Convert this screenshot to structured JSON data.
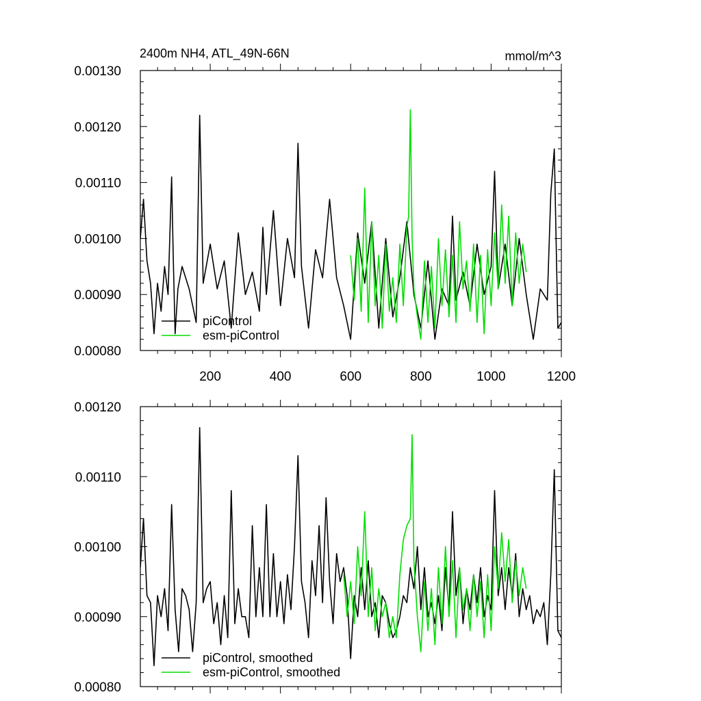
{
  "figure": {
    "title_left": "2400m NH4, ATL_49N-66N",
    "title_right": "mmol/m^3"
  },
  "colors": {
    "piControl": "#000000",
    "esm_piControl": "#00dd00",
    "axes": "#000000",
    "background": "#ffffff"
  },
  "chart_data": [
    {
      "type": "line",
      "title": "2400m NH4, ATL_49N-66N",
      "units": "mmol/m^3",
      "xlabel": "",
      "ylabel": "",
      "xlim": [
        1,
        1200
      ],
      "ylim": [
        0.0008,
        0.0013
      ],
      "xticks": [
        200,
        400,
        600,
        800,
        1000,
        1200
      ],
      "xtick_labels": [
        "200",
        "400",
        "600",
        "800",
        "1000",
        "1200"
      ],
      "yticks": [
        0.0008,
        0.0009,
        0.001,
        0.0011,
        0.0012,
        0.0013
      ],
      "ytick_labels": [
        "0.00080",
        "0.00090",
        "0.00100",
        "0.00110",
        "0.00120",
        "0.00130"
      ],
      "legend": {
        "placement": "bottom-left",
        "entries": [
          "piControl",
          "esm-piControl"
        ]
      },
      "series": [
        {
          "name": "piControl",
          "x": [
            1,
            10,
            20,
            30,
            40,
            50,
            60,
            70,
            80,
            90,
            95,
            100,
            108,
            120,
            140,
            160,
            170,
            180,
            200,
            220,
            240,
            260,
            280,
            300,
            320,
            340,
            350,
            360,
            380,
            400,
            420,
            440,
            450,
            460,
            480,
            500,
            520,
            540,
            560,
            580,
            600,
            620,
            640,
            660,
            680,
            700,
            720,
            740,
            760,
            780,
            800,
            820,
            840,
            860,
            880,
            890,
            900,
            920,
            940,
            960,
            980,
            1000,
            1010,
            1020,
            1040,
            1060,
            1080,
            1100,
            1120,
            1140,
            1160,
            1170,
            1180,
            1190,
            1200
          ],
          "values": [
            0.001,
            0.00107,
            0.00096,
            0.00092,
            0.00083,
            0.00092,
            0.00087,
            0.00095,
            0.0009,
            0.00111,
            0.00096,
            0.00083,
            0.00091,
            0.00095,
            0.00091,
            0.00085,
            0.00122,
            0.00092,
            0.00099,
            0.00091,
            0.00096,
            0.00084,
            0.00101,
            0.0009,
            0.00094,
            0.00087,
            0.00102,
            0.0009,
            0.00105,
            0.00088,
            0.001,
            0.00093,
            0.00117,
            0.00095,
            0.00084,
            0.00098,
            0.00093,
            0.00107,
            0.00093,
            0.00088,
            0.00082,
            0.00101,
            0.00092,
            0.00103,
            0.00084,
            0.001,
            0.00086,
            0.00093,
            0.00103,
            0.0009,
            0.00084,
            0.00096,
            0.00082,
            0.00091,
            0.00088,
            0.00104,
            0.00089,
            0.00094,
            0.00088,
            0.00099,
            0.0009,
            0.00095,
            0.00112,
            0.00091,
            0.00099,
            0.00088,
            0.001,
            0.0009,
            0.00082,
            0.00091,
            0.00089,
            0.00108,
            0.00116,
            0.00084,
            0.00085
          ]
        },
        {
          "name": "esm-piControl",
          "x": [
            600,
            610,
            620,
            630,
            640,
            650,
            660,
            670,
            680,
            690,
            700,
            710,
            720,
            730,
            740,
            750,
            760,
            765,
            770,
            775,
            780,
            790,
            800,
            810,
            820,
            830,
            840,
            850,
            860,
            870,
            880,
            890,
            900,
            910,
            920,
            930,
            940,
            950,
            960,
            970,
            980,
            990,
            1000,
            1010,
            1020,
            1030,
            1040,
            1050,
            1060,
            1070,
            1080,
            1090,
            1100
          ],
          "values": [
            0.00097,
            0.00089,
            0.001,
            0.00087,
            0.00109,
            0.00085,
            0.00103,
            0.00088,
            0.00097,
            0.00084,
            0.00099,
            0.00087,
            0.00093,
            0.00085,
            0.00099,
            0.00088,
            0.00102,
            0.00104,
            0.00123,
            0.001,
            0.00091,
            0.00086,
            0.00082,
            0.00096,
            0.00085,
            0.00095,
            0.00084,
            0.001,
            0.00088,
            0.00098,
            0.00086,
            0.00097,
            0.00085,
            0.00103,
            0.00091,
            0.00096,
            0.00087,
            0.00099,
            0.00085,
            0.00097,
            0.00083,
            0.00098,
            0.00088,
            0.00101,
            0.00091,
            0.00106,
            0.00092,
            0.00104,
            0.00088,
            0.00101,
            0.00092,
            0.00099,
            0.00094
          ]
        }
      ]
    },
    {
      "type": "line",
      "title": "",
      "xlabel": "",
      "ylabel": "",
      "xlim": [
        1,
        1200
      ],
      "ylim": [
        0.0008,
        0.0012
      ],
      "xticks": [
        200,
        400,
        600,
        800,
        1000,
        1200
      ],
      "xtick_labels": [],
      "yticks": [
        0.0008,
        0.0009,
        0.001,
        0.0011,
        0.0012
      ],
      "ytick_labels": [
        "0.00080",
        "0.00090",
        "0.00100",
        "0.00110",
        "0.00120"
      ],
      "legend": {
        "placement": "bottom-left",
        "entries": [
          "piControl, smoothed",
          "esm-piControl, smoothed"
        ]
      },
      "series": [
        {
          "name": "piControl, smoothed",
          "x": [
            1,
            10,
            20,
            30,
            40,
            50,
            60,
            70,
            80,
            90,
            100,
            110,
            120,
            130,
            140,
            150,
            160,
            170,
            180,
            190,
            200,
            210,
            220,
            230,
            240,
            250,
            260,
            270,
            280,
            290,
            300,
            310,
            320,
            330,
            340,
            350,
            360,
            370,
            380,
            390,
            400,
            410,
            420,
            430,
            440,
            450,
            460,
            470,
            480,
            490,
            500,
            510,
            520,
            530,
            540,
            550,
            560,
            570,
            580,
            590,
            600,
            610,
            620,
            630,
            640,
            650,
            660,
            670,
            680,
            690,
            700,
            710,
            720,
            730,
            740,
            750,
            760,
            770,
            780,
            790,
            800,
            810,
            820,
            830,
            840,
            850,
            860,
            870,
            880,
            890,
            900,
            910,
            920,
            930,
            940,
            950,
            960,
            970,
            980,
            990,
            1000,
            1010,
            1020,
            1030,
            1040,
            1050,
            1060,
            1070,
            1080,
            1090,
            1100,
            1110,
            1120,
            1130,
            1140,
            1150,
            1160,
            1170,
            1180,
            1190,
            1200
          ],
          "values": [
            0.00097,
            0.00104,
            0.00093,
            0.00092,
            0.00083,
            0.00093,
            0.0009,
            0.00094,
            0.00088,
            0.00106,
            0.00091,
            0.00085,
            0.00094,
            0.00093,
            0.00091,
            0.00085,
            0.00092,
            0.00117,
            0.00092,
            0.00094,
            0.00095,
            0.00089,
            0.00092,
            0.00086,
            0.00093,
            0.00087,
            0.00108,
            0.00089,
            0.00094,
            0.0009,
            0.0009,
            0.00087,
            0.00103,
            0.0009,
            0.00097,
            0.0009,
            0.00106,
            0.0009,
            0.00099,
            0.0009,
            0.00095,
            0.00089,
            0.00096,
            0.00091,
            0.001,
            0.00113,
            0.00095,
            0.00092,
            0.00087,
            0.00098,
            0.00093,
            0.00103,
            0.00092,
            0.00107,
            0.00095,
            0.00089,
            0.00099,
            0.00095,
            0.00097,
            0.00093,
            0.00084,
            0.00093,
            0.0009,
            0.00097,
            0.00091,
            0.00098,
            0.0009,
            0.00092,
            0.00087,
            0.00093,
            0.00092,
            0.00089,
            0.00087,
            0.00088,
            0.0009,
            0.00093,
            0.00092,
            0.00097,
            0.00094,
            0.001,
            0.00091,
            0.00097,
            0.0009,
            0.00092,
            0.00089,
            0.00093,
            0.00088,
            0.00097,
            0.00091,
            0.00105,
            0.00093,
            0.00097,
            0.00089,
            0.00094,
            0.00091,
            0.00096,
            0.00092,
            0.00097,
            0.0009,
            0.00093,
            0.00091,
            0.00108,
            0.00093,
            0.00097,
            0.00091,
            0.00097,
            0.00093,
            0.00099,
            0.0009,
            0.00094,
            0.00091,
            0.00093,
            0.00089,
            0.00091,
            0.0009,
            0.00092,
            0.00086,
            0.00096,
            0.00111,
            0.00088,
            0.00087
          ]
        },
        {
          "name": "esm-piControl, smoothed",
          "x": [
            580,
            590,
            600,
            610,
            620,
            630,
            640,
            650,
            660,
            670,
            680,
            690,
            700,
            710,
            720,
            730,
            740,
            750,
            760,
            770,
            775,
            780,
            790,
            800,
            810,
            820,
            830,
            840,
            850,
            860,
            870,
            880,
            890,
            900,
            910,
            920,
            930,
            940,
            950,
            960,
            970,
            980,
            990,
            1000,
            1010,
            1020,
            1030,
            1040,
            1050,
            1060,
            1070,
            1080,
            1090,
            1100
          ],
          "values": [
            0.00096,
            0.0009,
            0.00095,
            0.00089,
            0.001,
            0.00093,
            0.00105,
            0.0009,
            0.00097,
            0.00088,
            0.00094,
            0.0009,
            0.00092,
            0.00087,
            0.0009,
            0.00087,
            0.00096,
            0.00101,
            0.00103,
            0.00104,
            0.00116,
            0.00098,
            0.0009,
            0.00085,
            0.00095,
            0.00088,
            0.00094,
            0.00086,
            0.00097,
            0.00089,
            0.001,
            0.0009,
            0.00098,
            0.00087,
            0.00097,
            0.00091,
            0.00094,
            0.00088,
            0.00096,
            0.0009,
            0.00095,
            0.00087,
            0.00096,
            0.00088,
            0.001,
            0.00094,
            0.00102,
            0.00095,
            0.00101,
            0.00092,
            0.00098,
            0.00093,
            0.00097,
            0.00094
          ]
        }
      ]
    }
  ]
}
